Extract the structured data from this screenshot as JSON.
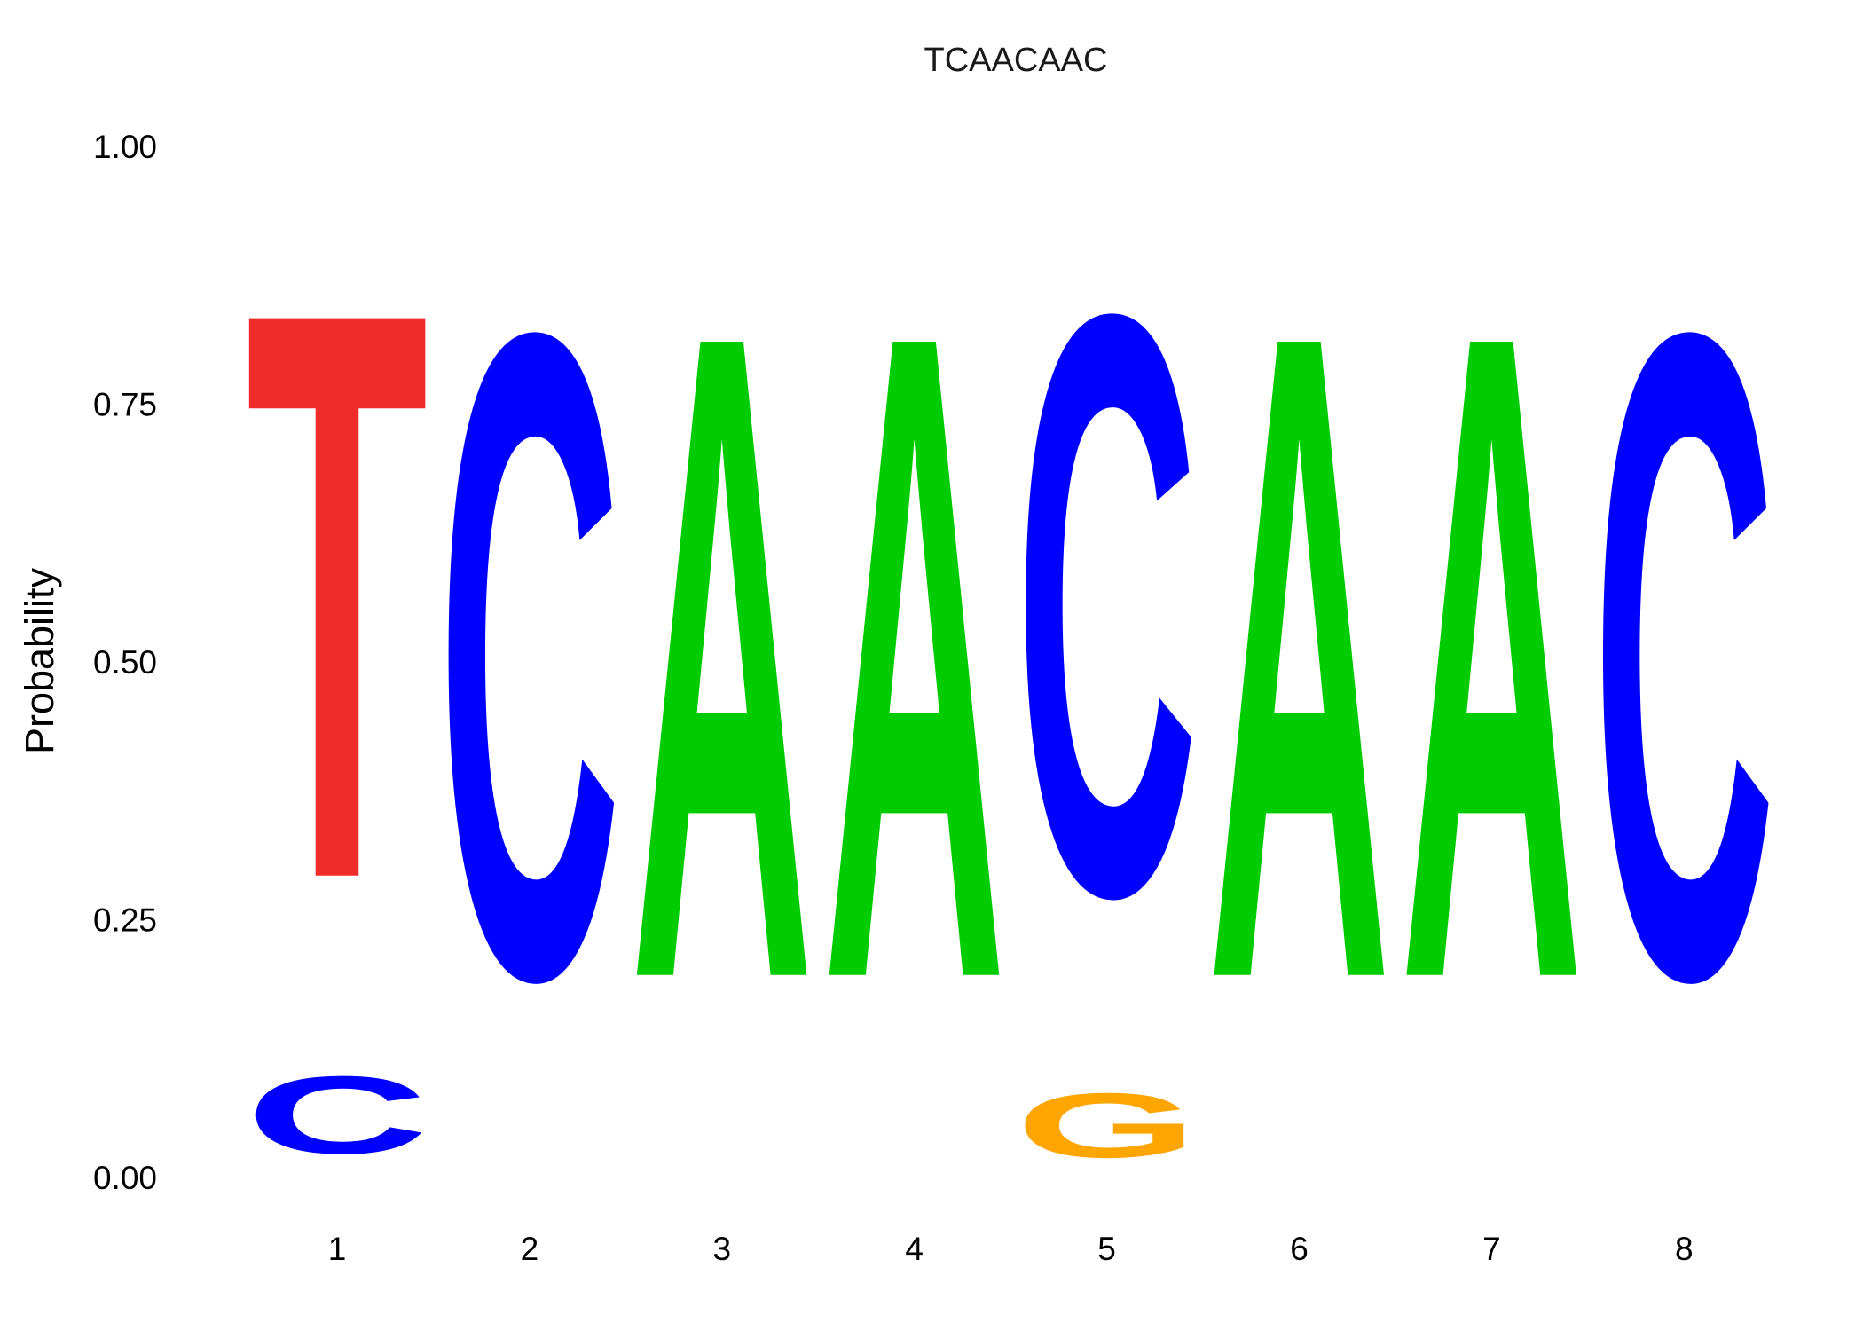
{
  "chart_data": {
    "type": "sequence-logo",
    "title": "TCAACAAC",
    "xlabel": "",
    "ylabel": "Probability",
    "ylim": [
      0,
      1
    ],
    "y_ticks": [
      "0.00",
      "0.25",
      "0.50",
      "0.75",
      "1.00"
    ],
    "x_ticks": [
      "1",
      "2",
      "3",
      "4",
      "5",
      "6",
      "7",
      "8"
    ],
    "grid": false,
    "colors": {
      "A": "#00cc00",
      "C": "#0000ff",
      "G": "#ffa500",
      "T": "#ee2c2c"
    },
    "positions": [
      {
        "position": "1",
        "letters": [
          {
            "base": "C",
            "prob": 0.12
          },
          {
            "base": "T",
            "prob": 0.88
          }
        ]
      },
      {
        "position": "2",
        "letters": [
          {
            "base": "C",
            "prob": 1.0
          }
        ]
      },
      {
        "position": "3",
        "letters": [
          {
            "base": "A",
            "prob": 1.0
          }
        ]
      },
      {
        "position": "4",
        "letters": [
          {
            "base": "A",
            "prob": 1.0
          }
        ]
      },
      {
        "position": "5",
        "letters": [
          {
            "base": "G",
            "prob": 0.1
          },
          {
            "base": "C",
            "prob": 0.9
          }
        ]
      },
      {
        "position": "6",
        "letters": [
          {
            "base": "A",
            "prob": 1.0
          }
        ]
      },
      {
        "position": "7",
        "letters": [
          {
            "base": "A",
            "prob": 1.0
          }
        ]
      },
      {
        "position": "8",
        "letters": [
          {
            "base": "C",
            "prob": 1.0
          }
        ]
      }
    ]
  }
}
